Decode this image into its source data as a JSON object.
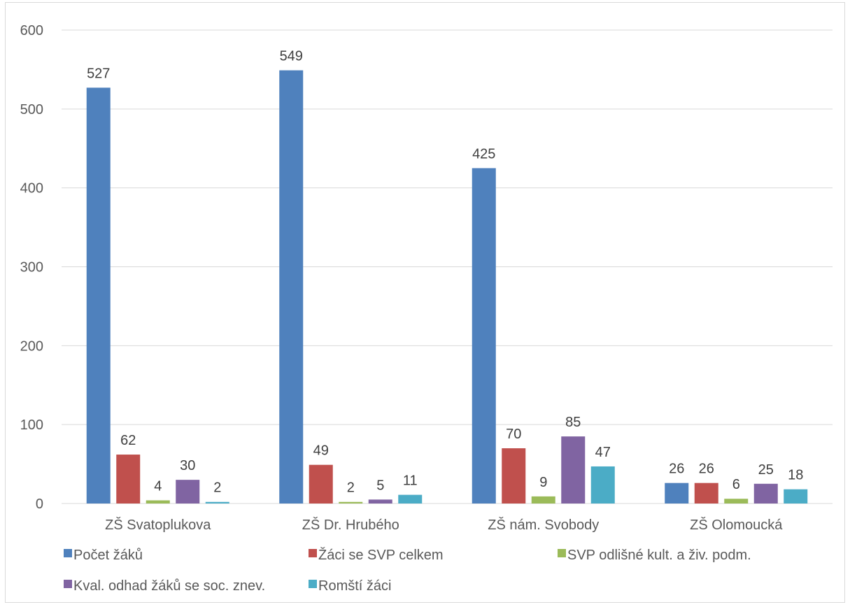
{
  "chart_data": {
    "type": "bar",
    "title": "",
    "xlabel": "",
    "ylabel": "",
    "ylim": [
      0,
      600
    ],
    "yticks": [
      0,
      100,
      200,
      300,
      400,
      500,
      600
    ],
    "grid": true,
    "legend_position": "bottom",
    "categories": [
      "ZŠ Svatoplukova",
      "ZŠ Dr. Hrubého",
      "ZŠ nám. Svobody",
      "ZŠ Olomoucká"
    ],
    "series": [
      {
        "name": "Počet žáků",
        "color": "#4f81bd",
        "values": [
          527,
          549,
          425,
          26
        ]
      },
      {
        "name": "Žáci se SVP celkem",
        "color": "#c0504d",
        "values": [
          62,
          49,
          70,
          26
        ]
      },
      {
        "name": "SVP odlišné kult. a živ. podm.",
        "color": "#9bbb59",
        "values": [
          4,
          2,
          9,
          6
        ]
      },
      {
        "name": "Kval. odhad žáků se soc. znev.",
        "color": "#8064a2",
        "values": [
          30,
          5,
          85,
          25
        ]
      },
      {
        "name": "Romští žáci",
        "color": "#4bacc6",
        "values": [
          2,
          11,
          47,
          18
        ]
      }
    ]
  }
}
